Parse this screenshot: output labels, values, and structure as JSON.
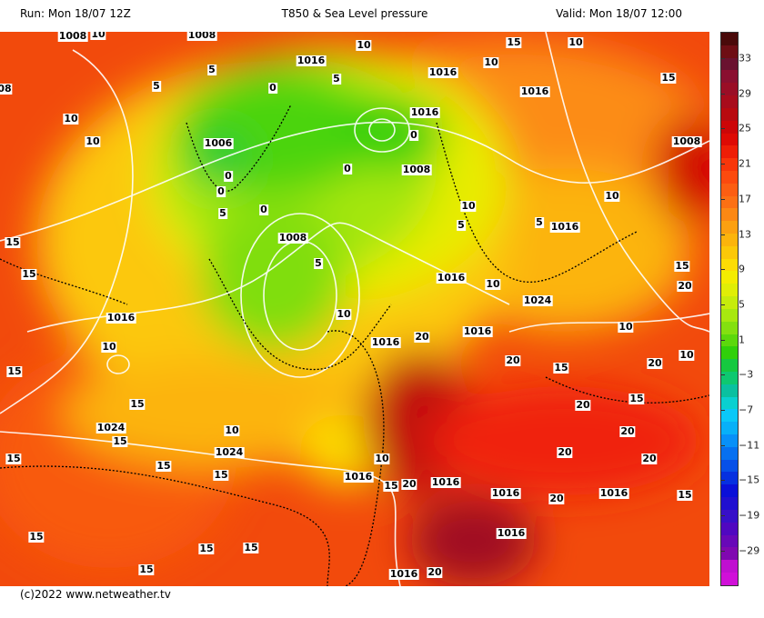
{
  "header": {
    "run": "Run: Mon 18/07 12Z",
    "title": "T850 & Sea Level pressure",
    "valid": "Valid: Mon 18/07 12:00"
  },
  "colorbar": {
    "ticks": [
      "33",
      "29",
      "25",
      "21",
      "17",
      "13",
      "9",
      "5",
      "1",
      "−3",
      "−7",
      "−11",
      "−15",
      "−19",
      "−29"
    ],
    "colors": [
      "#4a0a0a",
      "#6e0e14",
      "#6a1230",
      "#8a1030",
      "#9a0e26",
      "#a80c1c",
      "#b80a10",
      "#cc0608",
      "#de0a04",
      "#ee1e06",
      "#f8360a",
      "#fc4a0e",
      "#fc5e12",
      "#fc7014",
      "#fc8814",
      "#fca010",
      "#fcb40c",
      "#fcc808",
      "#fcdc04",
      "#f4ec00",
      "#e0ee06",
      "#c6ec0c",
      "#a8e810",
      "#84e010",
      "#5cd80c",
      "#30d00a",
      "#16c840",
      "#0ec870",
      "#0ac0a0",
      "#0ad0d0",
      "#0ac8f8",
      "#08b0f8",
      "#0890f8",
      "#0670f0",
      "#0650e8",
      "#0630e0",
      "#0a10d8",
      "#2010d0",
      "#3810c8",
      "#5008c0",
      "#6808b8",
      "#8008b0",
      "#c010d0",
      "#d010d8"
    ]
  },
  "map": {
    "isobar_labels": [
      "1008",
      "10",
      "1008",
      "5",
      "1016",
      "10",
      "1016",
      "10",
      "08",
      "5",
      "10",
      "0",
      "5",
      "1016",
      "0",
      "10",
      "1016",
      "15",
      "10",
      "1006",
      "0",
      "0",
      "0",
      "1008",
      "10",
      "15",
      "5",
      "5",
      "0",
      "5",
      "1008",
      "1016",
      "15",
      "10",
      "1008",
      "5",
      "1016",
      "10",
      "20",
      "1016",
      "10",
      "15",
      "1024",
      "15",
      "20",
      "10",
      "1016",
      "10",
      "15",
      "15",
      "1016",
      "20",
      "10",
      "15",
      "15",
      "20",
      "15",
      "15",
      "20",
      "1024",
      "10",
      "20",
      "1024",
      "15",
      "20",
      "15",
      "1016",
      "10",
      "15",
      "20",
      "1016",
      "15",
      "1016",
      "20",
      "1016",
      "15",
      "15",
      "20",
      "1016",
      "15",
      "15",
      "1016",
      "20"
    ]
  },
  "footer": {
    "copyright": "(c)2022 www.netweather.tv"
  }
}
